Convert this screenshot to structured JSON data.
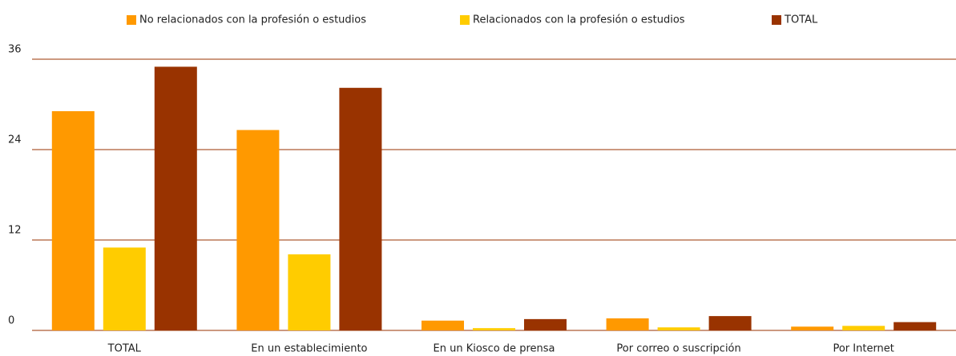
{
  "chart_data": {
    "type": "bar",
    "categories": [
      "TOTAL",
      "En un establecimiento",
      "En un Kiosco de prensa",
      "Por correo o suscripción",
      "Por Internet"
    ],
    "series": [
      {
        "name": "No relacionados con la profesión o estudios",
        "color": "#ff9900",
        "values": [
          29.1,
          26.6,
          1.3,
          1.6,
          0.5
        ]
      },
      {
        "name": "Relacionados con la profesión o estudios",
        "color": "#ffcc00",
        "values": [
          11.0,
          10.1,
          0.3,
          0.4,
          0.6
        ]
      },
      {
        "name": "TOTAL",
        "color": "#993300",
        "values": [
          35.0,
          32.2,
          1.5,
          1.9,
          1.1
        ]
      }
    ],
    "ylim": [
      0,
      36
    ],
    "yticks": [
      0,
      12,
      24,
      36
    ],
    "grid": true,
    "legend": "top"
  }
}
